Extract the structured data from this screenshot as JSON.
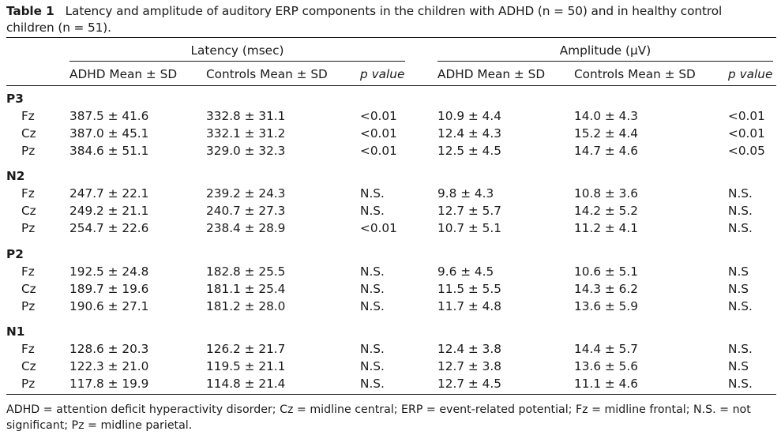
{
  "caption": {
    "label": "Table 1",
    "line1": "Latency and amplitude of auditory ERP components in the children with ADHD (n = 50) and in healthy control",
    "line2": "children (n = 51)."
  },
  "groups": {
    "latency": "Latency (msec)",
    "amplitude": "Amplitude (µV)"
  },
  "columns": {
    "lat_adhd": "ADHD Mean ± SD",
    "lat_ctrl": "Controls Mean ± SD",
    "lat_p": "p value",
    "amp_adhd": "ADHD Mean ± SD",
    "amp_ctrl": "Controls Mean ± SD",
    "amp_p": "p value"
  },
  "sections": [
    {
      "name": "P3",
      "rows": [
        {
          "site": "Fz",
          "lat_adhd": "387.5 ± 41.6",
          "lat_ctrl": "332.8 ± 31.1",
          "lat_p": "<0.01",
          "amp_adhd": "10.9 ± 4.4",
          "amp_ctrl": "14.0 ± 4.3",
          "amp_p": "<0.01"
        },
        {
          "site": "Cz",
          "lat_adhd": "387.0 ± 45.1",
          "lat_ctrl": "332.1 ± 31.2",
          "lat_p": "<0.01",
          "amp_adhd": "12.4 ± 4.3",
          "amp_ctrl": "15.2 ± 4.4",
          "amp_p": "<0.01"
        },
        {
          "site": "Pz",
          "lat_adhd": "384.6 ± 51.1",
          "lat_ctrl": "329.0 ± 32.3",
          "lat_p": "<0.01",
          "amp_adhd": "12.5 ± 4.5",
          "amp_ctrl": "14.7 ± 4.6",
          "amp_p": "<0.05"
        }
      ]
    },
    {
      "name": "N2",
      "rows": [
        {
          "site": "Fz",
          "lat_adhd": "247.7 ± 22.1",
          "lat_ctrl": "239.2 ± 24.3",
          "lat_p": "N.S.",
          "amp_adhd": "9.8 ± 4.3",
          "amp_ctrl": "10.8 ± 3.6",
          "amp_p": "N.S."
        },
        {
          "site": "Cz",
          "lat_adhd": "249.2 ± 21.1",
          "lat_ctrl": "240.7 ± 27.3",
          "lat_p": "N.S.",
          "amp_adhd": "12.7 ± 5.7",
          "amp_ctrl": "14.2 ± 5.2",
          "amp_p": "N.S."
        },
        {
          "site": "Pz",
          "lat_adhd": "254.7 ± 22.6",
          "lat_ctrl": "238.4 ± 28.9",
          "lat_p": "<0.01",
          "amp_adhd": "10.7 ± 5.1",
          "amp_ctrl": "11.2 ± 4.1",
          "amp_p": "N.S."
        }
      ]
    },
    {
      "name": "P2",
      "rows": [
        {
          "site": "Fz",
          "lat_adhd": "192.5 ± 24.8",
          "lat_ctrl": "182.8 ± 25.5",
          "lat_p": "N.S.",
          "amp_adhd": "9.6 ± 4.5",
          "amp_ctrl": "10.6 ± 5.1",
          "amp_p": "N.S"
        },
        {
          "site": "Cz",
          "lat_adhd": "189.7 ± 19.6",
          "lat_ctrl": "181.1 ± 25.4",
          "lat_p": "N.S.",
          "amp_adhd": "11.5 ± 5.5",
          "amp_ctrl": "14.3 ± 6.2",
          "amp_p": "N.S"
        },
        {
          "site": "Pz",
          "lat_adhd": "190.6 ± 27.1",
          "lat_ctrl": "181.2 ± 28.0",
          "lat_p": "N.S.",
          "amp_adhd": "11.7 ± 4.8",
          "amp_ctrl": "13.6 ± 5.9",
          "amp_p": "N.S."
        }
      ]
    },
    {
      "name": "N1",
      "rows": [
        {
          "site": "Fz",
          "lat_adhd": "128.6 ± 20.3",
          "lat_ctrl": "126.2 ± 21.7",
          "lat_p": "N.S.",
          "amp_adhd": "12.4 ± 3.8",
          "amp_ctrl": "14.4 ± 5.7",
          "amp_p": "N.S."
        },
        {
          "site": "Cz",
          "lat_adhd": "122.3 ± 21.0",
          "lat_ctrl": "119.5 ± 21.1",
          "lat_p": "N.S.",
          "amp_adhd": "12.7 ± 3.8",
          "amp_ctrl": "13.6 ± 5.6",
          "amp_p": "N.S"
        },
        {
          "site": "Pz",
          "lat_adhd": "117.8 ± 19.9",
          "lat_ctrl": "114.8 ± 21.4",
          "lat_p": "N.S.",
          "amp_adhd": "12.7 ± 4.5",
          "amp_ctrl": "11.1 ± 4.6",
          "amp_p": "N.S."
        }
      ]
    }
  ],
  "footnote": "ADHD = attention deficit hyperactivity disorder; Cz = midline central; ERP = event-related potential; Fz = midline frontal; N.S. = not significant; Pz = midline parietal."
}
